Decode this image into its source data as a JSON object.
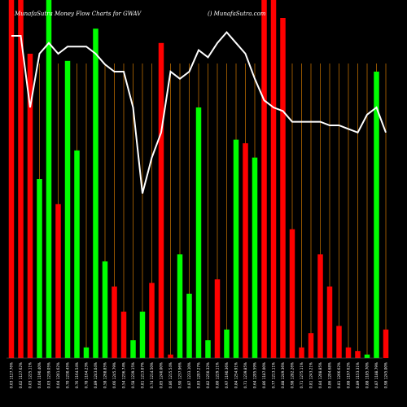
{
  "header": {
    "title_left": "MunafaSutra  Money Flow  Charts for GWAV",
    "title_right": "() MunafaSutra.com"
  },
  "colors": {
    "background": "#000000",
    "up_bar": "#00ff00",
    "down_bar": "#ff0000",
    "grid_line": "#b86a00",
    "line": "#ffffff"
  },
  "chart_data": {
    "type": "bar",
    "title": "MunafaSutra  Money Flow  Charts for GWAV",
    "ylim": [
      0,
      100
    ],
    "grid": true,
    "series": [
      {
        "kind": "bar",
        "values": [
          100,
          100,
          85,
          50,
          100,
          43,
          83,
          58,
          3,
          92,
          27,
          20,
          13,
          5,
          13,
          21,
          88,
          1,
          29,
          18,
          70,
          5,
          22,
          8,
          61,
          60,
          56,
          100,
          100,
          95,
          36,
          3,
          7,
          29,
          20,
          9,
          3,
          2,
          1,
          80,
          8
        ],
        "colors": [
          "red",
          "red",
          "red",
          "green",
          "green",
          "red",
          "green",
          "green",
          "green",
          "green",
          "green",
          "red",
          "red",
          "green",
          "green",
          "red",
          "red",
          "red",
          "green",
          "green",
          "green",
          "green",
          "red",
          "green",
          "green",
          "red",
          "green",
          "red",
          "red",
          "red",
          "red",
          "red",
          "red",
          "red",
          "red",
          "red",
          "red",
          "red",
          "green",
          "green",
          "red"
        ]
      },
      {
        "kind": "line",
        "values": [
          90,
          90,
          70,
          85,
          88,
          85,
          87,
          87,
          87,
          85,
          82,
          80,
          80,
          70,
          46,
          56,
          63,
          80,
          78,
          80,
          86,
          84,
          88,
          91,
          88,
          85,
          78,
          72,
          70,
          69,
          66,
          66,
          66,
          66,
          65,
          65,
          64,
          63,
          68,
          70,
          63
        ]
      }
    ],
    "tick_labels": [
      "0.03 1127.76%",
      "0.02 1127.62%",
      "0.03 1225.11%",
      "0.04 1190.40%",
      "0.03 1239.05%",
      "0.04 1201.62%",
      "0.70 1230.45%",
      "0.76 1164.54%",
      "0.78 1164.23%",
      "0.89 1243.04%",
      "0.58 1268.85%",
      "0.66 1245.79%",
      "0.54 1236.74%",
      "0.58 1239.15%",
      "0.81 1213.07%",
      "0.74 1214.50%",
      "0.85 1240.00%",
      "0.86 1215.54%",
      "0.90 1237.96%",
      "0.87 1233.10%",
      "0.83 1207.27%",
      "0.82 1250.32%",
      "0.80 1229.11%",
      "0.97 1190.36%",
      "0.84 1254.91%",
      "0.71 1239.85%",
      "0.64 1205.59%",
      "0.86 1187.00%",
      "0.77 1213.11%",
      "0.88 1249.36%",
      "0.98 1282.26%",
      "0.71 1275.11%",
      "0.81 1243.21%",
      "0.84 1208.85%",
      "0.86 1204.68%",
      "0.81 1266.62%",
      "0.88 1197.62%",
      "0.89 1153.31%",
      "0.88 1185.70%",
      "0.87 1188.79%",
      "0.98 1245.00%"
    ]
  }
}
